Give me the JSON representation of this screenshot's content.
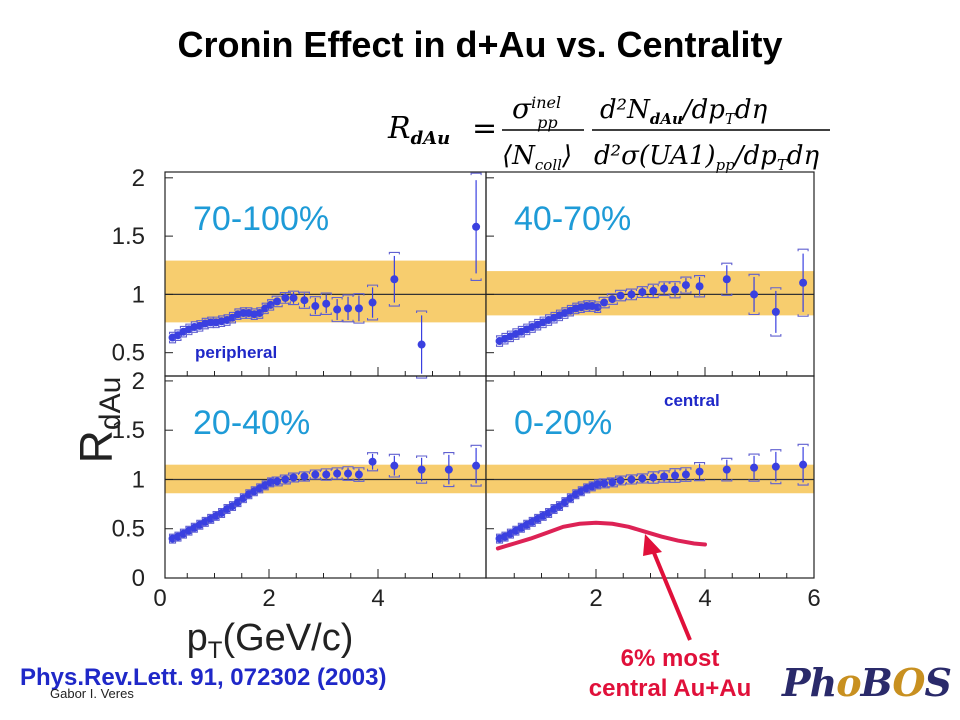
{
  "title": "Cronin Effect in d+Au vs. Centrality",
  "formula": {
    "lhs_R": "R",
    "lhs_sub": "dAu",
    "sigma": "σ",
    "inel": "inel",
    "pp": "pp",
    "ncoll": "⟨N",
    "ncoll_sub": "coll",
    "rangle": "⟩",
    "num": "d²N",
    "num_sub": "dAu",
    "num_rest": "/dp",
    "T": "T",
    "deta": "dη",
    "den": "d²σ(UA1)",
    "den_sub": "pp",
    "den_rest": "/dp",
    "eq": "="
  },
  "reference": "Phys.Rev.Lett. 91, 072302 (2003)",
  "author": "Gabor I. Veres",
  "note_line1": "6% most",
  "note_line2": "central Au+Au",
  "logo": {
    "p1": "Ph",
    "o": "o",
    "b": "B",
    "o2": "O",
    "s": "S"
  },
  "colors": {
    "marker": "#3a40e0",
    "band": "#f7cd6e",
    "curve": "#dd2255",
    "arrow": "#e0103a",
    "syst": "#6060d0"
  },
  "chart_data": {
    "type": "scatter",
    "ylabel": "R",
    "ylabel_sub": "dAu",
    "xlabel": "p",
    "xlabel_sub": "T",
    "xlabel_unit": "(GeV/c)",
    "y_top_ticks": [
      "2",
      "1.5",
      "1",
      "0.5"
    ],
    "y_bottom_ticks": [
      "2",
      "1.5",
      "1",
      "0.5",
      "0"
    ],
    "x_left_ticks": [
      "0",
      "2",
      "4"
    ],
    "x_right_ticks": [
      "2",
      "4",
      "6"
    ],
    "ylim": [
      0,
      2.1
    ],
    "panels": [
      {
        "label": "70-100%",
        "tag": "peripheral",
        "band": [
          0.76,
          1.29
        ],
        "x": [
          0.23,
          0.33,
          0.43,
          0.53,
          0.63,
          0.73,
          0.83,
          0.93,
          1.03,
          1.13,
          1.23,
          1.33,
          1.43,
          1.53,
          1.63,
          1.73,
          1.83,
          1.93,
          2.03,
          2.15,
          2.3,
          2.45,
          2.65,
          2.85,
          3.05,
          3.25,
          3.45,
          3.65,
          3.9,
          4.3,
          4.8,
          5.8
        ],
        "y": [
          0.63,
          0.65,
          0.68,
          0.7,
          0.72,
          0.73,
          0.75,
          0.76,
          0.76,
          0.77,
          0.78,
          0.8,
          0.83,
          0.84,
          0.84,
          0.83,
          0.84,
          0.88,
          0.91,
          0.94,
          0.97,
          0.97,
          0.95,
          0.9,
          0.92,
          0.87,
          0.88,
          0.88,
          0.93,
          1.13,
          0.57,
          1.58
        ],
        "err": [
          0.02,
          0.02,
          0.02,
          0.02,
          0.02,
          0.02,
          0.02,
          0.02,
          0.02,
          0.02,
          0.02,
          0.02,
          0.02,
          0.02,
          0.02,
          0.02,
          0.02,
          0.02,
          0.02,
          0.03,
          0.04,
          0.05,
          0.06,
          0.07,
          0.08,
          0.09,
          0.1,
          0.11,
          0.13,
          0.2,
          0.25,
          0.4
        ]
      },
      {
        "label": "40-70%",
        "tag": "",
        "band": [
          0.82,
          1.2
        ],
        "x": [
          0.23,
          0.33,
          0.43,
          0.53,
          0.63,
          0.73,
          0.83,
          0.93,
          1.03,
          1.13,
          1.23,
          1.33,
          1.43,
          1.53,
          1.63,
          1.73,
          1.83,
          1.93,
          2.03,
          2.15,
          2.3,
          2.45,
          2.65,
          2.85,
          3.05,
          3.25,
          3.45,
          3.65,
          3.9,
          4.4,
          4.9,
          5.3,
          5.8
        ],
        "y": [
          0.6,
          0.62,
          0.64,
          0.66,
          0.68,
          0.7,
          0.72,
          0.74,
          0.76,
          0.78,
          0.8,
          0.82,
          0.84,
          0.86,
          0.88,
          0.89,
          0.9,
          0.9,
          0.89,
          0.93,
          0.96,
          0.99,
          1.0,
          1.02,
          1.03,
          1.05,
          1.04,
          1.08,
          1.07,
          1.13,
          1.0,
          0.85,
          1.1
        ],
        "err": [
          0.02,
          0.02,
          0.02,
          0.02,
          0.02,
          0.02,
          0.02,
          0.02,
          0.02,
          0.02,
          0.02,
          0.02,
          0.02,
          0.02,
          0.02,
          0.02,
          0.02,
          0.02,
          0.02,
          0.02,
          0.03,
          0.03,
          0.04,
          0.04,
          0.05,
          0.05,
          0.06,
          0.06,
          0.08,
          0.12,
          0.15,
          0.18,
          0.25
        ]
      },
      {
        "label": "20-40%",
        "tag": "",
        "band": [
          0.86,
          1.15
        ],
        "x": [
          0.23,
          0.33,
          0.43,
          0.53,
          0.63,
          0.73,
          0.83,
          0.93,
          1.03,
          1.13,
          1.23,
          1.33,
          1.43,
          1.53,
          1.63,
          1.73,
          1.83,
          1.93,
          2.03,
          2.15,
          2.3,
          2.45,
          2.65,
          2.85,
          3.05,
          3.25,
          3.45,
          3.65,
          3.9,
          4.3,
          4.8,
          5.3,
          5.8
        ],
        "y": [
          0.4,
          0.42,
          0.45,
          0.48,
          0.51,
          0.54,
          0.57,
          0.6,
          0.63,
          0.66,
          0.7,
          0.73,
          0.77,
          0.81,
          0.85,
          0.88,
          0.91,
          0.94,
          0.97,
          0.98,
          1.0,
          1.02,
          1.03,
          1.05,
          1.05,
          1.06,
          1.06,
          1.05,
          1.18,
          1.14,
          1.1,
          1.1,
          1.14
        ],
        "err": [
          0.02,
          0.02,
          0.02,
          0.02,
          0.02,
          0.02,
          0.02,
          0.02,
          0.02,
          0.02,
          0.02,
          0.02,
          0.02,
          0.02,
          0.02,
          0.02,
          0.02,
          0.02,
          0.02,
          0.02,
          0.03,
          0.03,
          0.04,
          0.04,
          0.05,
          0.05,
          0.06,
          0.06,
          0.08,
          0.1,
          0.12,
          0.15,
          0.18
        ]
      },
      {
        "label": "0-20%",
        "tag": "central",
        "band": [
          0.86,
          1.15
        ],
        "x": [
          0.23,
          0.33,
          0.43,
          0.53,
          0.63,
          0.73,
          0.83,
          0.93,
          1.03,
          1.13,
          1.23,
          1.33,
          1.43,
          1.53,
          1.63,
          1.73,
          1.83,
          1.93,
          2.03,
          2.15,
          2.3,
          2.45,
          2.65,
          2.85,
          3.05,
          3.25,
          3.45,
          3.65,
          3.9,
          4.4,
          4.9,
          5.3,
          5.8
        ],
        "y": [
          0.4,
          0.42,
          0.45,
          0.48,
          0.51,
          0.54,
          0.57,
          0.6,
          0.63,
          0.66,
          0.7,
          0.73,
          0.77,
          0.81,
          0.85,
          0.88,
          0.91,
          0.93,
          0.95,
          0.96,
          0.97,
          0.99,
          1.0,
          1.01,
          1.02,
          1.03,
          1.04,
          1.05,
          1.08,
          1.1,
          1.12,
          1.13,
          1.15
        ],
        "err": [
          0.02,
          0.02,
          0.02,
          0.02,
          0.02,
          0.02,
          0.02,
          0.02,
          0.02,
          0.02,
          0.02,
          0.02,
          0.02,
          0.02,
          0.02,
          0.02,
          0.02,
          0.02,
          0.02,
          0.02,
          0.03,
          0.03,
          0.04,
          0.04,
          0.05,
          0.05,
          0.06,
          0.06,
          0.08,
          0.1,
          0.12,
          0.15,
          0.18
        ]
      }
    ],
    "auau_curve": {
      "x": [
        0.2,
        0.5,
        0.8,
        1.1,
        1.4,
        1.7,
        2.0,
        2.3,
        2.6,
        2.9,
        3.2,
        3.5,
        3.8,
        4.0
      ],
      "y": [
        0.3,
        0.35,
        0.4,
        0.46,
        0.52,
        0.55,
        0.56,
        0.55,
        0.52,
        0.47,
        0.42,
        0.38,
        0.35,
        0.34
      ]
    }
  }
}
